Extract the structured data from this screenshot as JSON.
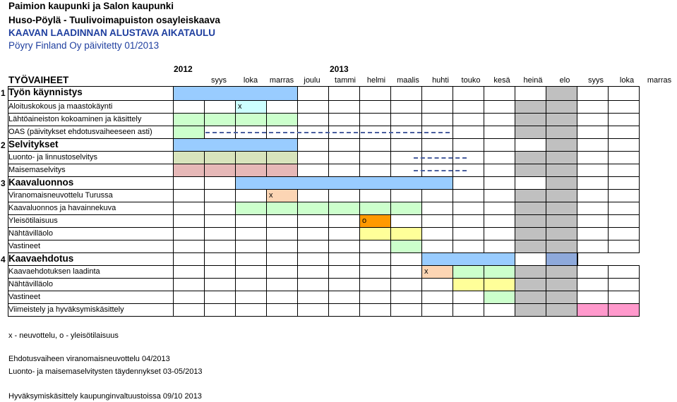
{
  "header": {
    "line1": "Paimion kaupunki ja Salon kaupunki",
    "line2": "Huso-Pöylä - Tuulivoimapuiston osayleiskaava",
    "line3": "KAAVAN LAADINNAN ALUSTAVA AIKATAULU",
    "line4": "Pöyry Finland Oy päivitetty 01/2013"
  },
  "years": [
    "2012",
    "2013"
  ],
  "phase_heading": "TYÖVAIHEET",
  "months": [
    "syys",
    "loka",
    "marras",
    "joulu",
    "tammi",
    "helmi",
    "maalis",
    "huhti",
    "touko",
    "kesä",
    "heinä",
    "elo",
    "syys",
    "loka",
    "marras"
  ],
  "rows": [
    {
      "kind": "phase",
      "num": "1",
      "label": "Työn käynnistys"
    },
    {
      "kind": "task",
      "label": "Aloituskokous ja maastokäynti",
      "mark": "x",
      "mark_col": 2
    },
    {
      "kind": "task",
      "label": "Lähtöaineiston kokoaminen ja käsittely"
    },
    {
      "kind": "task",
      "label": "OAS (päivitykset ehdotusvaiheeseen asti)"
    },
    {
      "kind": "phase",
      "num": "2",
      "label": "Selvitykset"
    },
    {
      "kind": "task",
      "label": "Luonto- ja linnustoselvitys"
    },
    {
      "kind": "task",
      "label": "Maisemaselvitys"
    },
    {
      "kind": "phase",
      "num": "3",
      "label": "Kaavaluonnos"
    },
    {
      "kind": "task",
      "label": "Viranomaisneuvottelu Turussa",
      "mark": "x",
      "mark_col": 3
    },
    {
      "kind": "task",
      "label": "Kaavaluonnos ja havainnekuva"
    },
    {
      "kind": "task",
      "label": "Yleisötilaisuus",
      "mark": "o",
      "mark_col": 6
    },
    {
      "kind": "task",
      "label": "Nähtävilläolo"
    },
    {
      "kind": "task",
      "label": "Vastineet"
    },
    {
      "kind": "phase",
      "num": "4",
      "label": "Kaavaehdotus"
    },
    {
      "kind": "task",
      "label": "Kaavaehdotuksen laadinta",
      "mark": "x",
      "mark_col": 8
    },
    {
      "kind": "task",
      "label": "Nähtävilläolo"
    },
    {
      "kind": "task",
      "label": "Vastineet"
    },
    {
      "kind": "task",
      "label": "Viimeistely ja hyväksymiskäsittely"
    }
  ],
  "colors": {
    "blue": "#99ccff",
    "green": "#ccffcc",
    "olive": "#d8e4bc",
    "pink_light": "#e6b8b7",
    "orange_light": "#fcd5b4",
    "orange": "#ff9900",
    "yellow": "#ffff99",
    "pink": "#ff99cc",
    "gray": "#c0c0c0",
    "gray_blue": "#8ea9db",
    "cyan": "#ccffff",
    "dash": "#4a5f9f"
  },
  "notes": [
    "x - neuvottelu, o - yleisötilaisuus",
    "Ehdotusvaiheen viranomaisneuvottelu 04/2013",
    "Luonto- ja maisemaselvitysten täydennykset 03-05/2013",
    "Hyväksymiskäsittely kaupunginvaltuustoissa 09/10 2013"
  ]
}
